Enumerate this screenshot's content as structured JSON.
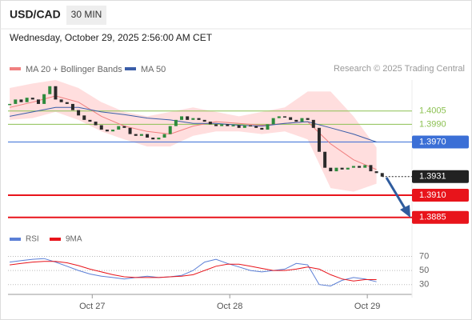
{
  "header": {
    "symbol": "USD/CAD",
    "interval": "30 MIN",
    "datetime": "Wednesday, October 29, 2025 2:56:00 AM CET",
    "credit": "Research © 2025 Trading Central"
  },
  "chart_data": [
    {
      "type": "candlestick",
      "closes": [
        1.4013,
        1.4018,
        1.4015,
        1.402,
        1.4018,
        1.4013,
        1.4024,
        1.4033,
        1.4018,
        1.4015,
        1.4013,
        1.4006,
        1.4,
        1.3995,
        1.3993,
        1.3989,
        1.3984,
        1.3982,
        1.3984,
        1.3988,
        1.3986,
        1.3979,
        1.3977,
        1.3979,
        1.3975,
        1.3973,
        1.3975,
        1.3979,
        1.3988,
        1.3995,
        1.3999,
        1.3995,
        1.3997,
        1.3995,
        1.3993,
        1.399,
        1.3988,
        1.399,
        1.3988,
        1.3989,
        1.3986,
        1.3989,
        1.3988,
        1.3986,
        1.3984,
        1.399,
        1.3997,
        1.3999,
        1.3998,
        1.3995,
        1.3993,
        1.3997,
        1.3995,
        1.3986,
        1.3959,
        1.3941,
        1.3937,
        1.3941,
        1.3939,
        1.3941,
        1.3943,
        1.3941,
        1.3944,
        1.3937,
        1.3935,
        1.3931
      ],
      "up_color": "#2e8b3d",
      "down_color": "#2a2a2a",
      "overlay_x": [
        0,
        4,
        8,
        12,
        16,
        20,
        24,
        28,
        32,
        36,
        40,
        44,
        48,
        52,
        56,
        60,
        64
      ],
      "series": [
        {
          "name": "MA 20 + Bollinger Bands",
          "color": "#f08080",
          "values": [
            1.4009,
            1.4015,
            1.4022,
            1.4015,
            1.3999,
            1.3988,
            1.3982,
            1.3979,
            1.3988,
            1.3993,
            1.3991,
            1.3989,
            1.3991,
            1.3993,
            1.3968,
            1.395,
            1.3939
          ]
        },
        {
          "name": "MA 50",
          "color": "#3a5da8",
          "values": [
            1.3999,
            1.4004,
            1.4009,
            1.4009,
            1.4004,
            1.4001,
            1.3997,
            1.3995,
            1.3991,
            1.3991,
            1.3989,
            1.3988,
            1.3991,
            1.3993,
            1.3986,
            1.3979,
            1.397
          ]
        }
      ],
      "bands": {
        "color": "#ffd0d0",
        "upper": [
          1.4031,
          1.4036,
          1.404,
          1.4031,
          1.4015,
          1.4004,
          1.3999,
          1.4004,
          1.4009,
          1.4004,
          1.3999,
          1.4004,
          1.4009,
          1.4027,
          1.4027,
          1.3999,
          1.3964
        ],
        "lower": [
          1.3995,
          1.3997,
          1.4004,
          1.3995,
          1.3982,
          1.3973,
          1.3965,
          1.3965,
          1.3977,
          1.3982,
          1.3982,
          1.3979,
          1.3982,
          1.3973,
          1.3918,
          1.3914,
          1.3923
        ]
      },
      "levels": [
        {
          "value": 1.4005,
          "label": "1.4005",
          "color": "#8cc152",
          "style": "solid",
          "box": false
        },
        {
          "value": 1.399,
          "label": "1.3990",
          "color": "#8cc152",
          "style": "solid",
          "box": false
        },
        {
          "value": 1.397,
          "label": "1.3970",
          "color": "#3b6fd6",
          "style": "solid",
          "box": true
        },
        {
          "value": 1.3931,
          "label": "1.3931",
          "color": "#222222",
          "style": "dotted",
          "box": true
        },
        {
          "value": 1.391,
          "label": "1.3910",
          "color": "#e8141b",
          "style": "solid",
          "box": true
        },
        {
          "value": 1.3885,
          "label": "1.3885",
          "color": "#e8141b",
          "style": "solid",
          "box": true
        }
      ],
      "xlim": [
        -0.3,
        70.2
      ],
      "ylim": [
        1.3873,
        1.404
      ]
    },
    {
      "type": "line",
      "x": [
        0,
        2,
        4,
        6,
        8,
        10,
        12,
        14,
        16,
        18,
        20,
        22,
        24,
        26,
        28,
        30,
        32,
        34,
        36,
        38,
        40,
        42,
        44,
        46,
        48,
        50,
        52,
        54,
        56,
        58,
        60,
        62,
        64
      ],
      "series": [
        {
          "name": "RSI",
          "color": "#5b7fd6",
          "values": [
            62,
            64,
            66,
            67,
            62,
            56,
            50,
            45,
            42,
            40,
            38,
            40,
            42,
            40,
            41,
            43,
            50,
            62,
            66,
            60,
            55,
            50,
            48,
            50,
            52,
            60,
            58,
            30,
            28,
            36,
            40,
            38,
            34
          ]
        },
        {
          "name": "9MA",
          "color": "#e8141b",
          "values": [
            58,
            60,
            62,
            63,
            63,
            61,
            57,
            52,
            48,
            44,
            41,
            40,
            40,
            40,
            41,
            42,
            44,
            50,
            56,
            59,
            59,
            56,
            53,
            50,
            50,
            52,
            55,
            52,
            44,
            38,
            35,
            37,
            37
          ]
        }
      ],
      "xlim": [
        -0.3,
        70.2
      ],
      "ylim": [
        16,
        82
      ],
      "yticks": [
        70,
        50,
        30
      ],
      "xticks": [
        {
          "value": 14.4,
          "label": "Oct 27"
        },
        {
          "value": 38.4,
          "label": "Oct 28"
        },
        {
          "value": 62.4,
          "label": "Oct 29"
        }
      ]
    }
  ]
}
